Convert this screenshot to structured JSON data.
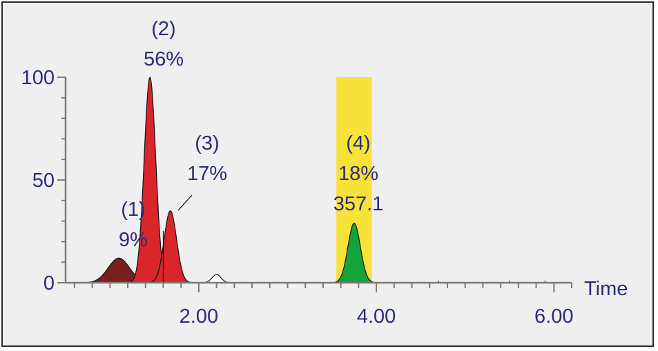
{
  "chart_data": {
    "type": "area",
    "title": "",
    "xlabel": "Time",
    "ylabel": "",
    "xlim": [
      0.5,
      6.2
    ],
    "ylim": [
      0,
      100
    ],
    "x_ticks": [
      {
        "value": 2.0,
        "label": "2.00"
      },
      {
        "value": 4.0,
        "label": "4.00"
      },
      {
        "value": 6.0,
        "label": "6.00"
      }
    ],
    "y_ticks": [
      {
        "value": 0,
        "label": "0"
      },
      {
        "value": 50,
        "label": "50"
      },
      {
        "value": 100,
        "label": "100"
      }
    ],
    "highlight_window": {
      "x_start": 3.55,
      "x_end": 3.95,
      "color": "#f7e23a"
    },
    "peaks": [
      {
        "id": "peak-1",
        "center": 1.1,
        "height": 12,
        "sigma": 0.12,
        "color": "#7a1f1f",
        "labels": [
          "(1)",
          "9%"
        ]
      },
      {
        "id": "peak-2",
        "center": 1.45,
        "height": 100,
        "sigma": 0.065,
        "color": "#d8262b",
        "labels": [
          "(2)",
          "56%"
        ]
      },
      {
        "id": "peak-3",
        "center": 1.68,
        "height": 35,
        "sigma": 0.07,
        "color": "#d8262b",
        "labels": [
          "(3)",
          "17%"
        ]
      },
      {
        "id": "peak-small",
        "center": 2.2,
        "height": 4,
        "sigma": 0.05,
        "color": "#ffffff",
        "labels": []
      },
      {
        "id": "peak-4",
        "center": 3.75,
        "height": 29,
        "sigma": 0.07,
        "color": "#16a33a",
        "labels": [
          "(4)",
          "18%",
          "357.1"
        ]
      }
    ],
    "split_line_x": 1.6,
    "baseline_noise": [
      {
        "x": 4.7,
        "y": 1
      },
      {
        "x": 5.5,
        "y": 1
      },
      {
        "x": 5.9,
        "y": 1
      }
    ]
  }
}
